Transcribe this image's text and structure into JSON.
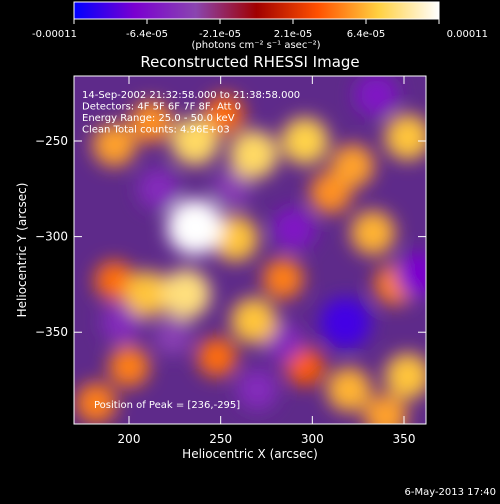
{
  "colorbar": {
    "tick_labels": [
      "-0.00011",
      "-6.4e-05",
      "-2.1e-05",
      "2.1e-05",
      "6.4e-05",
      "0.00011"
    ],
    "unit_label": "(photons cm⁻² s⁻¹ asec⁻²)",
    "colors": [
      "#0000ff",
      "#7a00d0",
      "#8a45b0",
      "#a00000",
      "#ff5000",
      "#ffd040",
      "#ffffff"
    ]
  },
  "chart_data": {
    "type": "heatmap",
    "title": "Reconstructed RHESSI Image",
    "xlabel": "Heliocentric X (arcsec)",
    "ylabel": "Heliocentric Y (arcsec)",
    "xlim": [
      170,
      362
    ],
    "ylim": [
      -398,
      -216
    ],
    "x_ticks": [
      200,
      250,
      300,
      350
    ],
    "y_ticks": [
      -250,
      -300,
      -350
    ],
    "x_tick_labels": [
      "200",
      "250",
      "300",
      "350"
    ],
    "y_tick_labels": [
      "−250",
      "−300",
      "−350"
    ],
    "color_range": [
      -0.00011,
      0.00011
    ],
    "annotations": [
      "14-Sep-2002 21:32:58.000 to 21:38:58.000",
      "Detectors: 4F 5F 6F 7F 8F, Att 0",
      "Energy Range: 25.0 - 50.0 keV",
      "Clean    Total counts: 4.96E+03"
    ],
    "peak_label": "Position of Peak = [236,-295]",
    "peak": [
      236,
      -295
    ],
    "sources": [
      {
        "x": 236,
        "y": -295,
        "v": 0.00011
      },
      {
        "x": 258,
        "y": -301,
        "v": 7e-05
      },
      {
        "x": 231,
        "y": -330,
        "v": 8.5e-05
      },
      {
        "x": 210,
        "y": -330,
        "v": 7e-05
      },
      {
        "x": 192,
        "y": -323,
        "v": 4.5e-05
      },
      {
        "x": 192,
        "y": -252,
        "v": 6e-05
      },
      {
        "x": 212,
        "y": -240,
        "v": 5.5e-05
      },
      {
        "x": 236,
        "y": -250,
        "v": 8e-05
      },
      {
        "x": 252,
        "y": -236,
        "v": 4.5e-05
      },
      {
        "x": 268,
        "y": -257,
        "v": 8e-05
      },
      {
        "x": 296,
        "y": -250,
        "v": 7.5e-05
      },
      {
        "x": 310,
        "y": -277,
        "v": 5.5e-05
      },
      {
        "x": 322,
        "y": -263,
        "v": 6e-05
      },
      {
        "x": 352,
        "y": -248,
        "v": 7e-05
      },
      {
        "x": 333,
        "y": -298,
        "v": 6.5e-05
      },
      {
        "x": 345,
        "y": -325,
        "v": 5e-05
      },
      {
        "x": 268,
        "y": -344,
        "v": 7e-05
      },
      {
        "x": 284,
        "y": -322,
        "v": 5e-05
      },
      {
        "x": 248,
        "y": -363,
        "v": 4.5e-05
      },
      {
        "x": 200,
        "y": -368,
        "v": 5e-05
      },
      {
        "x": 182,
        "y": -387,
        "v": 5e-05
      },
      {
        "x": 296,
        "y": -368,
        "v": 4e-05
      },
      {
        "x": 320,
        "y": -380,
        "v": 6.5e-05
      },
      {
        "x": 352,
        "y": -373,
        "v": 7e-05
      },
      {
        "x": 340,
        "y": -394,
        "v": 6e-05
      },
      {
        "x": 216,
        "y": -275,
        "v": -5e-05
      },
      {
        "x": 290,
        "y": -296,
        "v": -6e-05
      },
      {
        "x": 318,
        "y": -345,
        "v": -9e-05
      },
      {
        "x": 284,
        "y": -355,
        "v": -5e-05
      },
      {
        "x": 335,
        "y": -226,
        "v": -6e-05
      },
      {
        "x": 358,
        "y": -320,
        "v": -7e-05
      },
      {
        "x": 270,
        "y": -380,
        "v": -5e-05
      },
      {
        "x": 224,
        "y": -352,
        "v": -4e-05
      },
      {
        "x": 196,
        "y": -345,
        "v": -5e-05
      },
      {
        "x": 256,
        "y": -275,
        "v": -4e-05
      }
    ]
  },
  "footer": {
    "timestamp": "6-May-2013 17:40"
  }
}
